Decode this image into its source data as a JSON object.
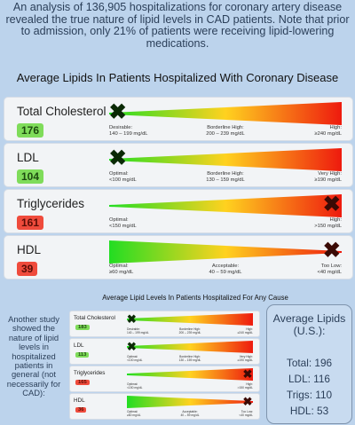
{
  "intro": "An analysis of 136,905 hospitalizations for coronary artery disease revealed the true nature of lipid levels in CAD patients. Note that prior to admission, only 21% of patients were receiving lipid-lowering medications.",
  "colors": {
    "green": "#22dd22",
    "yellow": "#ffd21f",
    "red": "#ee1a0e",
    "good_badge": "#7fdc5a",
    "bad_badge": "#ef4b3c"
  },
  "icons": [
    "x-mark-icon"
  ],
  "chart_data": [
    {
      "type": "table",
      "title": "Average Lipids In Patients Hospitalized With Coronary Disease",
      "units": "mg/dL",
      "rows": [
        {
          "name": "Total Cholesterol",
          "value": "176",
          "status": "good",
          "marker_fraction": 0.04,
          "gradient": "increasing",
          "ranges": [
            {
              "label": "Desirable:",
              "range": "140 – 199 mg/dL"
            },
            {
              "label": "Borderline High:",
              "range": "200 – 239 mg/dL"
            },
            {
              "label": "High:",
              "range": "≥240 mg/dL"
            }
          ]
        },
        {
          "name": "LDL",
          "value": "104",
          "status": "good",
          "marker_fraction": 0.04,
          "gradient": "increasing",
          "ranges": [
            {
              "label": "Optimal:",
              "range": "<100 mg/dL"
            },
            {
              "label": "Borderline High:",
              "range": "130 – 159 mg/dL"
            },
            {
              "label": "Very High:",
              "range": "≥190 mg/dL"
            }
          ]
        },
        {
          "name": "Triglycerides",
          "value": "161",
          "status": "bad",
          "marker_fraction": 0.96,
          "gradient": "increasing",
          "ranges": [
            {
              "label": "Optimal:",
              "range": "<150 mg/dL"
            },
            {
              "label": "High:",
              "range": ">150 mg/dL"
            }
          ]
        },
        {
          "name": "HDL",
          "value": "39",
          "status": "bad",
          "marker_fraction": 0.96,
          "gradient": "decreasing",
          "ranges": [
            {
              "label": "Optimal:",
              "range": "≥60 mg/dL"
            },
            {
              "label": "Acceptable:",
              "range": "40 – 59 mg/dL"
            },
            {
              "label": "Too Low:",
              "range": "<40 mg/dL"
            }
          ]
        }
      ]
    },
    {
      "type": "table",
      "title": "Average Lipid Levels In Patients Hospitalized For Any Cause",
      "units": "mg/dL",
      "rows": [
        {
          "name": "Total Cholesterol",
          "value": "183",
          "status": "good",
          "marker_fraction": 0.04,
          "gradient": "increasing",
          "ranges": [
            {
              "label": "Desirable:",
              "range": "140 – 199 mg/dL"
            },
            {
              "label": "Borderline High:",
              "range": "200 – 239 mg/dL"
            },
            {
              "label": "High:",
              "range": "≥240 mg/dL"
            }
          ]
        },
        {
          "name": "LDL",
          "value": "113",
          "status": "good",
          "marker_fraction": 0.04,
          "gradient": "increasing",
          "ranges": [
            {
              "label": "Optimal:",
              "range": "<100 mg/dL"
            },
            {
              "label": "Borderline High:",
              "range": "130 – 159 mg/dL"
            },
            {
              "label": "Very High:",
              "range": "≥190 mg/dL"
            }
          ]
        },
        {
          "name": "Triglycerides",
          "value": "165",
          "status": "bad",
          "marker_fraction": 0.96,
          "gradient": "increasing",
          "ranges": [
            {
              "label": "Optimal:",
              "range": "<150 mg/dL"
            },
            {
              "label": "High:",
              "range": ">150 mg/dL"
            }
          ]
        },
        {
          "name": "HDL",
          "value": "36",
          "status": "bad",
          "marker_fraction": 0.96,
          "gradient": "decreasing",
          "ranges": [
            {
              "label": "Optimal:",
              "range": "≥60 mg/dL"
            },
            {
              "label": "Acceptable:",
              "range": "40 – 59 mg/dL"
            },
            {
              "label": "Too Low:",
              "range": "<40 mg/dL"
            }
          ]
        }
      ]
    }
  ],
  "side_note": "Another study showed the nature of lipid levels in hospitalized patients in general (not necessarily for CAD):",
  "averages": {
    "title": "Average Lipids (U.S.):",
    "lines": [
      "Total: 196",
      "LDL: 116",
      "Trigs: 110",
      "HDL: 53"
    ]
  }
}
